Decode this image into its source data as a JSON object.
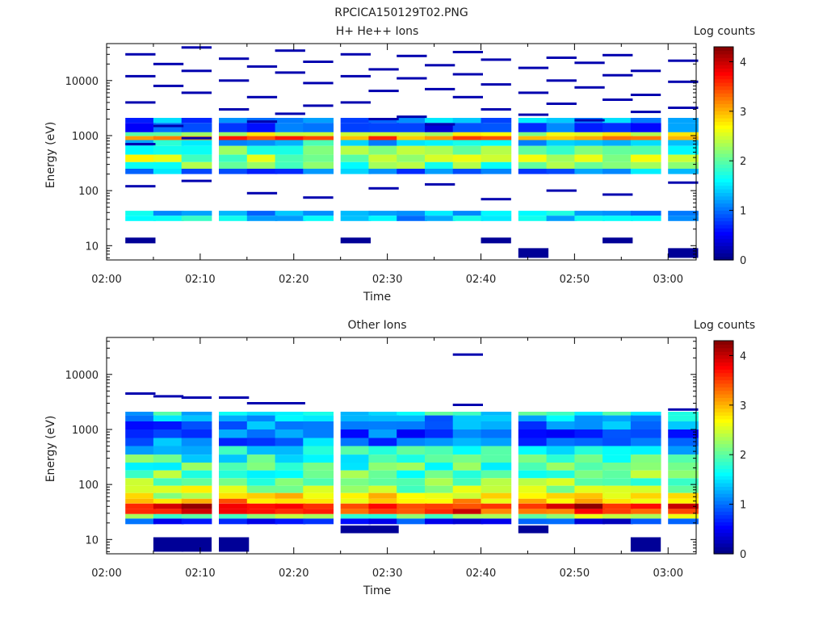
{
  "figure": {
    "title": "RPCICA150129T02.PNG"
  },
  "chart_data": [
    {
      "type": "heatmap",
      "title": "H+ He++ Ions",
      "xlabel": "Time",
      "ylabel": "Energy (eV)",
      "x_tick_labels": [
        "02:00",
        "02:10",
        "02:20",
        "02:30",
        "02:40",
        "02:50",
        "03:00"
      ],
      "y_tick_labels": [
        "10",
        "100",
        "1000",
        "10000"
      ],
      "y_scale": "log",
      "ylim": [
        5.5,
        47000
      ],
      "time_range": [
        "02:00",
        "03:03"
      ],
      "colorbar": {
        "label": "Log counts",
        "ticks": [
          "0",
          "1",
          "2",
          "3",
          "4"
        ],
        "range": [
          0,
          4.3
        ],
        "colormap": "jet"
      },
      "time_bins": [
        "02:02",
        "02:05",
        "02:08",
        "02:12",
        "02:15",
        "02:18",
        "02:21",
        "02:25",
        "02:28",
        "02:31",
        "02:34",
        "02:37",
        "02:40",
        "02:44",
        "02:47",
        "02:50",
        "02:53",
        "02:56",
        "03:00"
      ],
      "energy_bands": [
        {
          "e_low": 1700,
          "e_high": 2100,
          "level": 1.1
        },
        {
          "e_low": 1150,
          "e_high": 1700,
          "level": 0.8
        },
        {
          "e_low": 980,
          "e_high": 1150,
          "level": 2.4
        },
        {
          "e_low": 830,
          "e_high": 980,
          "level": 3.3
        },
        {
          "e_low": 650,
          "e_high": 830,
          "level": 1.5
        },
        {
          "e_low": 450,
          "e_high": 650,
          "level": 2.0
        },
        {
          "e_low": 330,
          "e_high": 450,
          "level": 2.3
        },
        {
          "e_low": 250,
          "e_high": 330,
          "level": 2.0
        },
        {
          "e_low": 200,
          "e_high": 250,
          "level": 1.1
        },
        {
          "e_low": 35,
          "e_high": 43,
          "level": 1.3
        },
        {
          "e_low": 28,
          "e_high": 35,
          "level": 1.4
        }
      ],
      "sparse_lines": {
        "e_min": 45,
        "e_max": 40000,
        "level": 0.2,
        "events": [
          [
            0,
            30000
          ],
          [
            0,
            12000
          ],
          [
            0,
            4000
          ],
          [
            0,
            700
          ],
          [
            1,
            20000
          ],
          [
            1,
            8000
          ],
          [
            1,
            1500
          ],
          [
            2,
            40000
          ],
          [
            2,
            15000
          ],
          [
            2,
            6000
          ],
          [
            2,
            900
          ],
          [
            3,
            25000
          ],
          [
            3,
            10000
          ],
          [
            3,
            3000
          ],
          [
            4,
            18000
          ],
          [
            4,
            5000
          ],
          [
            4,
            1800
          ],
          [
            5,
            35000
          ],
          [
            5,
            14000
          ],
          [
            5,
            2500
          ],
          [
            6,
            22000
          ],
          [
            6,
            9000
          ],
          [
            6,
            3500
          ],
          [
            7,
            30000
          ],
          [
            7,
            12000
          ],
          [
            7,
            4000
          ],
          [
            8,
            16000
          ],
          [
            8,
            6500
          ],
          [
            8,
            2000
          ],
          [
            9,
            28000
          ],
          [
            9,
            11000
          ],
          [
            9,
            2200
          ],
          [
            10,
            19000
          ],
          [
            10,
            7000
          ],
          [
            10,
            1600
          ],
          [
            11,
            33000
          ],
          [
            11,
            13000
          ],
          [
            11,
            5000
          ],
          [
            12,
            24000
          ],
          [
            12,
            8500
          ],
          [
            12,
            3000
          ],
          [
            13,
            17000
          ],
          [
            13,
            6000
          ],
          [
            13,
            2400
          ],
          [
            14,
            26000
          ],
          [
            14,
            10000
          ],
          [
            14,
            3800
          ],
          [
            15,
            21000
          ],
          [
            15,
            7500
          ],
          [
            15,
            1900
          ],
          [
            16,
            29000
          ],
          [
            16,
            12500
          ],
          [
            16,
            4500
          ],
          [
            17,
            15000
          ],
          [
            17,
            5500
          ],
          [
            17,
            2700
          ],
          [
            18,
            23000
          ],
          [
            18,
            9500
          ],
          [
            18,
            3200
          ],
          [
            0,
            120
          ],
          [
            2,
            150
          ],
          [
            4,
            90
          ],
          [
            6,
            75
          ],
          [
            8,
            110
          ],
          [
            10,
            130
          ],
          [
            12,
            70
          ],
          [
            14,
            100
          ],
          [
            16,
            85
          ],
          [
            18,
            140
          ]
        ]
      },
      "low_blocks": [
        [
          0,
          11,
          14
        ],
        [
          7,
          11,
          14
        ],
        [
          12,
          11,
          14
        ],
        [
          13,
          6,
          9
        ],
        [
          16,
          11,
          14
        ],
        [
          18,
          6,
          9
        ]
      ]
    },
    {
      "type": "heatmap",
      "title": "Other Ions",
      "xlabel": "Time",
      "ylabel": "Energy (eV)",
      "x_tick_labels": [
        "02:00",
        "02:10",
        "02:20",
        "02:30",
        "02:40",
        "02:50",
        "03:00"
      ],
      "y_tick_labels": [
        "10",
        "100",
        "1000",
        "10000"
      ],
      "y_scale": "log",
      "ylim": [
        5.5,
        47000
      ],
      "time_range": [
        "02:00",
        "03:03"
      ],
      "colorbar": {
        "label": "Log counts",
        "ticks": [
          "0",
          "1",
          "2",
          "3",
          "4"
        ],
        "range": [
          0,
          4.3
        ],
        "colormap": "jet"
      },
      "time_bins": [
        "02:02",
        "02:05",
        "02:08",
        "02:12",
        "02:15",
        "02:18",
        "02:21",
        "02:25",
        "02:28",
        "02:31",
        "02:34",
        "02:37",
        "02:40",
        "02:44",
        "02:47",
        "02:50",
        "02:53",
        "02:56",
        "03:00"
      ],
      "energy_bands": [
        {
          "e_low": 1800,
          "e_high": 2100,
          "level": 1.6
        },
        {
          "e_low": 1400,
          "e_high": 1800,
          "level": 1.3
        },
        {
          "e_low": 1000,
          "e_high": 1400,
          "level": 1.0
        },
        {
          "e_low": 700,
          "e_high": 1000,
          "level": 0.9
        },
        {
          "e_low": 500,
          "e_high": 700,
          "level": 1.1
        },
        {
          "e_low": 350,
          "e_high": 500,
          "level": 1.6
        },
        {
          "e_low": 250,
          "e_high": 350,
          "level": 1.8
        },
        {
          "e_low": 180,
          "e_high": 250,
          "level": 1.9
        },
        {
          "e_low": 130,
          "e_high": 180,
          "level": 2.0
        },
        {
          "e_low": 95,
          "e_high": 130,
          "level": 2.1
        },
        {
          "e_low": 70,
          "e_high": 95,
          "level": 2.3
        },
        {
          "e_low": 55,
          "e_high": 70,
          "level": 2.6
        },
        {
          "e_low": 45,
          "e_high": 55,
          "level": 3.0
        },
        {
          "e_low": 36,
          "e_high": 45,
          "level": 3.8
        },
        {
          "e_low": 29,
          "e_high": 36,
          "level": 3.6
        },
        {
          "e_low": 24,
          "e_high": 29,
          "level": 2.2
        },
        {
          "e_low": 19,
          "e_high": 24,
          "level": 0.6
        }
      ],
      "sparse_lines": {
        "e_min": 2200,
        "e_max": 25000,
        "level": 0.2,
        "events": [
          [
            0,
            4500
          ],
          [
            1,
            4000
          ],
          [
            2,
            3800
          ],
          [
            3,
            3800
          ],
          [
            4,
            3000
          ],
          [
            5,
            3000
          ],
          [
            11,
            2800
          ],
          [
            11,
            23000
          ],
          [
            18,
            2300
          ]
        ]
      },
      "low_blocks": [
        [
          1,
          6,
          11
        ],
        [
          2,
          6,
          11
        ],
        [
          3,
          6,
          11
        ],
        [
          7,
          13,
          18
        ],
        [
          8,
          13,
          18
        ],
        [
          13,
          13,
          18
        ],
        [
          17,
          6,
          11
        ]
      ]
    }
  ]
}
